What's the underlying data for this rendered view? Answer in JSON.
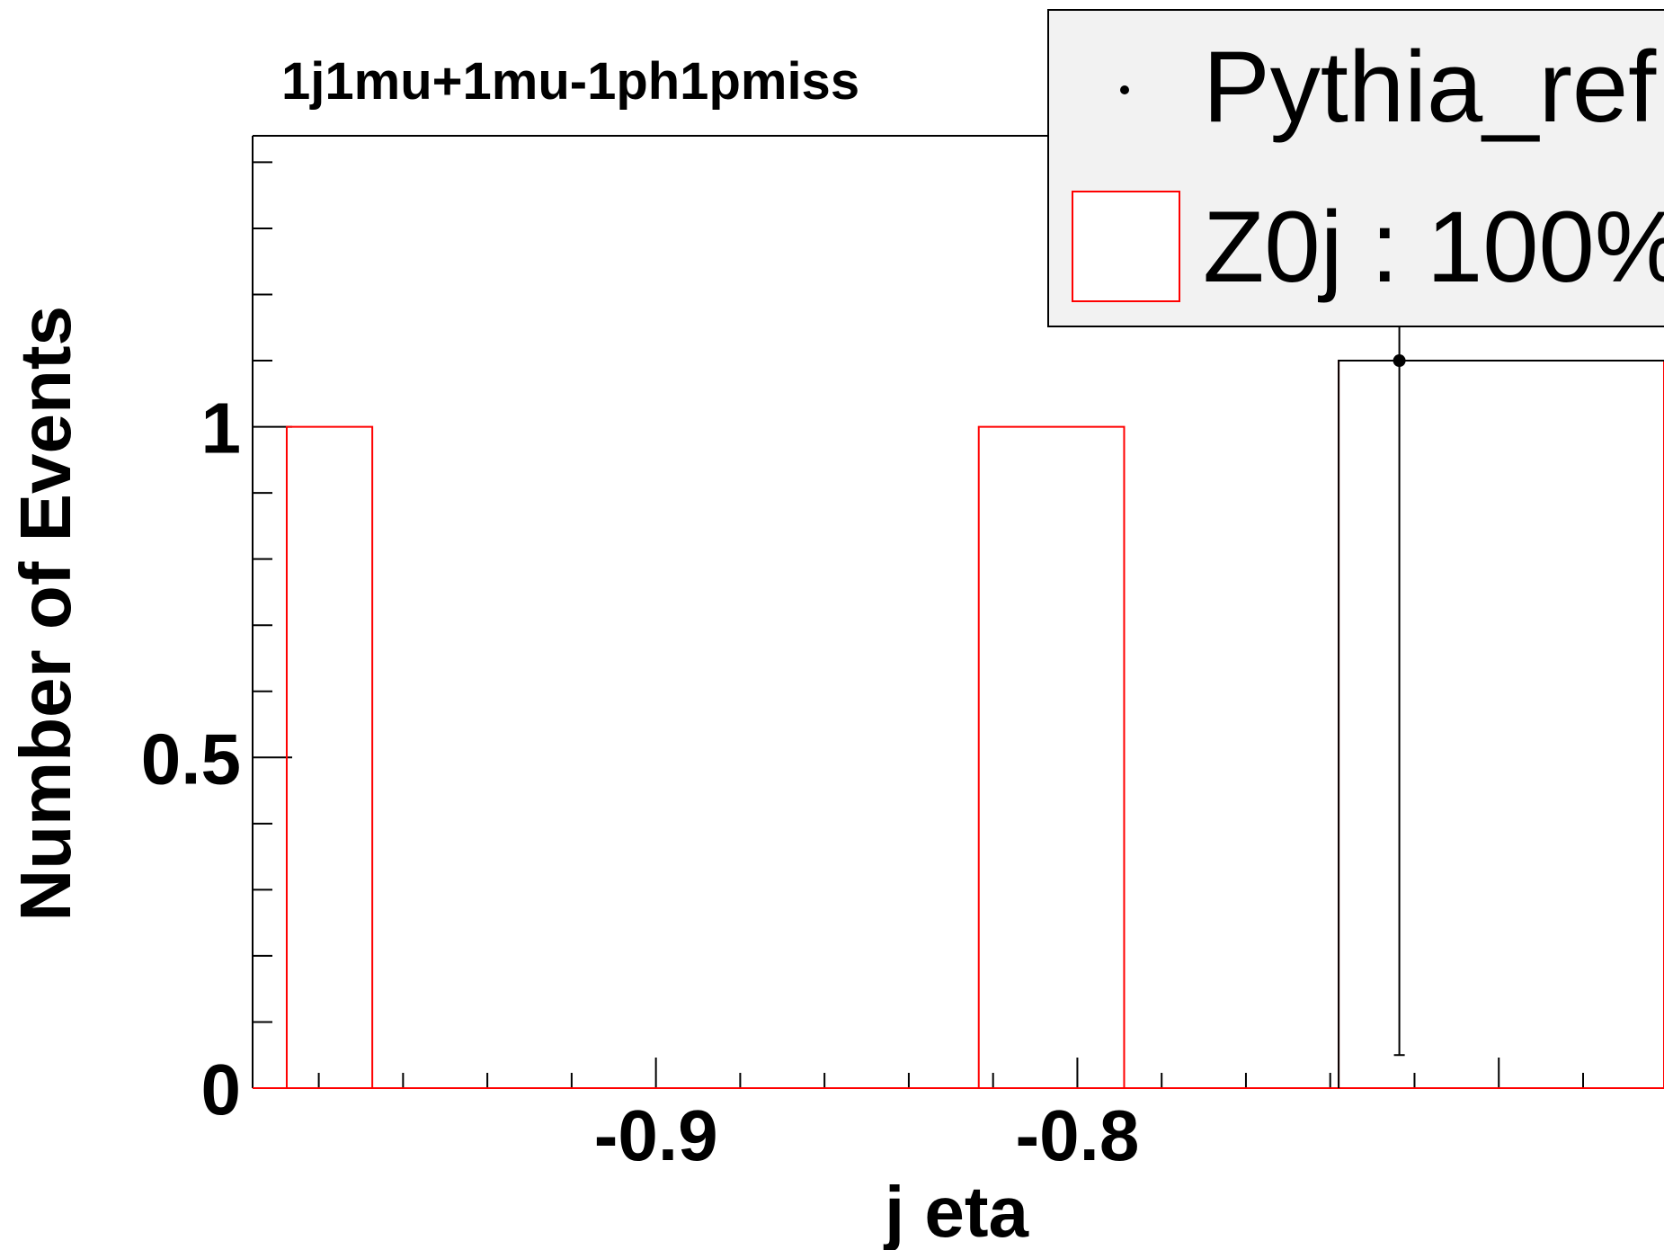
{
  "chart_data": {
    "type": "bar",
    "title": "1j1mu+1mu-1ph1pmiss",
    "xlabel": "j eta",
    "ylabel": "Number of Events",
    "xlim": [
      -0.9957,
      -0.6608
    ],
    "ylim": [
      0,
      1.44
    ],
    "x_ticks": [
      -0.9,
      -0.8
    ],
    "y_ticks": [
      0,
      0.5,
      1
    ],
    "x_tick_labels": [
      "-0.9",
      "-0.8"
    ],
    "y_tick_labels": [
      "0",
      "0.5",
      "1"
    ],
    "legend_position": "top-right",
    "series": [
      {
        "name": "Z0j : 100%",
        "style": "histogram",
        "color": "#ff0000",
        "bins": [
          {
            "x0": -0.9876,
            "x1": -0.9673,
            "value": 1
          },
          {
            "x0": -0.8234,
            "x1": -0.7889,
            "value": 1
          },
          {
            "x0": -0.738,
            "x1": -0.6608,
            "value": 1.1
          }
        ]
      },
      {
        "name": "Pythia_ref",
        "style": "markers",
        "color": "#000000",
        "points": [
          {
            "x": -0.7236,
            "y": 1.1,
            "yerr_low": 1.05,
            "yerr_high": 0.34
          }
        ]
      }
    ]
  }
}
